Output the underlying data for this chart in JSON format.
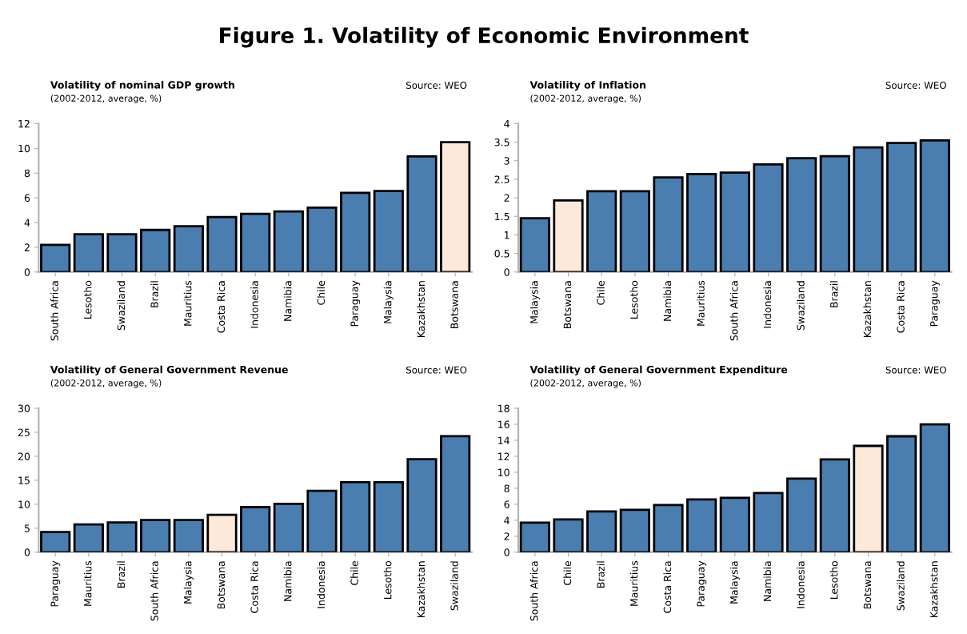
{
  "chart_data": [
    {
      "type": "bar",
      "title": "Volatility of nominal GDP growth",
      "subtitle": "(2002-2012, average, %)",
      "annotations": [
        "Figure 1. Volatility of Economic Environment",
        "Source: WEO"
      ],
      "categories": [
        "South Africa",
        "Lesotho",
        "Swaziland",
        "Brazil",
        "Mauritius",
        "Costa Rica",
        "Indonesia",
        "Namibia",
        "Chile",
        "Paraguay",
        "Malaysia",
        "Kazakhstan",
        "Botswana"
      ],
      "values": [
        2.2,
        3.05,
        3.05,
        3.4,
        3.7,
        4.45,
        4.7,
        4.9,
        5.2,
        6.4,
        6.55,
        9.35,
        10.5
      ],
      "colors": [
        "#4a7eb0",
        "#4a7eb0",
        "#4a7eb0",
        "#4a7eb0",
        "#4a7eb0",
        "#4a7eb0",
        "#4a7eb0",
        "#4a7eb0",
        "#4a7eb0",
        "#4a7eb0",
        "#4a7eb0",
        "#4a7eb0",
        "#fde9d9"
      ],
      "ylim": [
        0,
        12
      ],
      "yticks": [
        0,
        2,
        4,
        6,
        8,
        10,
        12
      ],
      "grid": false,
      "legend": false
    },
    {
      "type": "bar",
      "title": "Volatility of Inflation",
      "subtitle": "(2002-2012, average, %)",
      "annotations": [
        "Source: WEO"
      ],
      "categories": [
        "Malaysia",
        "Botswana",
        "Chile",
        "Lesotho",
        "Namibia",
        "Mauritius",
        "South Africa",
        "Indonesia",
        "Swaziland",
        "Brazil",
        "Kazakhstan",
        "Costa Rica",
        "Paraguay"
      ],
      "values": [
        1.45,
        1.93,
        2.18,
        2.18,
        2.55,
        2.64,
        2.68,
        2.9,
        3.07,
        3.12,
        3.36,
        3.48,
        3.55
      ],
      "colors": [
        "#4a7eb0",
        "#fde9d9",
        "#4a7eb0",
        "#4a7eb0",
        "#4a7eb0",
        "#4a7eb0",
        "#4a7eb0",
        "#4a7eb0",
        "#4a7eb0",
        "#4a7eb0",
        "#4a7eb0",
        "#4a7eb0",
        "#4a7eb0"
      ],
      "ylim": [
        0,
        4
      ],
      "yticks": [
        0,
        0.5,
        1,
        1.5,
        2,
        2.5,
        3,
        3.5,
        4
      ],
      "grid": false,
      "legend": false
    },
    {
      "type": "bar",
      "title": "Volatility of General Government Revenue",
      "subtitle": "(2002-2012, average, %)",
      "annotations": [
        "Source: WEO"
      ],
      "categories": [
        "Paraguay",
        "Mauritius",
        "Brazil",
        "South Africa",
        "Malaysia",
        "Botswana",
        "Costa Rica",
        "Namibia",
        "Indonesia",
        "Chile",
        "Lesotho",
        "Kazakhstan",
        "Swaziland"
      ],
      "values": [
        4.2,
        5.8,
        6.2,
        6.7,
        6.7,
        7.8,
        9.4,
        10.1,
        12.8,
        14.6,
        14.6,
        19.4,
        24.2
      ],
      "colors": [
        "#4a7eb0",
        "#4a7eb0",
        "#4a7eb0",
        "#4a7eb0",
        "#4a7eb0",
        "#fde9d9",
        "#4a7eb0",
        "#4a7eb0",
        "#4a7eb0",
        "#4a7eb0",
        "#4a7eb0",
        "#4a7eb0",
        "#4a7eb0"
      ],
      "ylim": [
        0,
        30
      ],
      "yticks": [
        0,
        5,
        10,
        15,
        20,
        25,
        30
      ],
      "grid": false,
      "legend": false
    },
    {
      "type": "bar",
      "title": "Volatility of General Government Expenditure",
      "subtitle": "(2002-2012, average, %)",
      "annotations": [
        "Source: WEO"
      ],
      "categories": [
        "South Africa",
        "Chile",
        "Brazil",
        "Mauritius",
        "Costa Rica",
        "Paraguay",
        "Malaysia",
        "Namibia",
        "Indonesia",
        "Lesotho",
        "Botswana",
        "Swaziland",
        "Kazakhstan"
      ],
      "values": [
        3.7,
        4.1,
        5.1,
        5.3,
        5.9,
        6.6,
        6.8,
        7.4,
        9.2,
        11.6,
        13.3,
        14.5,
        16.0
      ],
      "colors": [
        "#4a7eb0",
        "#4a7eb0",
        "#4a7eb0",
        "#4a7eb0",
        "#4a7eb0",
        "#4a7eb0",
        "#4a7eb0",
        "#4a7eb0",
        "#4a7eb0",
        "#4a7eb0",
        "#fde9d9",
        "#4a7eb0",
        "#4a7eb0"
      ],
      "ylim": [
        0,
        18
      ],
      "yticks": [
        0,
        2,
        4,
        6,
        8,
        10,
        12,
        14,
        16,
        18
      ],
      "grid": false,
      "legend": false
    }
  ]
}
